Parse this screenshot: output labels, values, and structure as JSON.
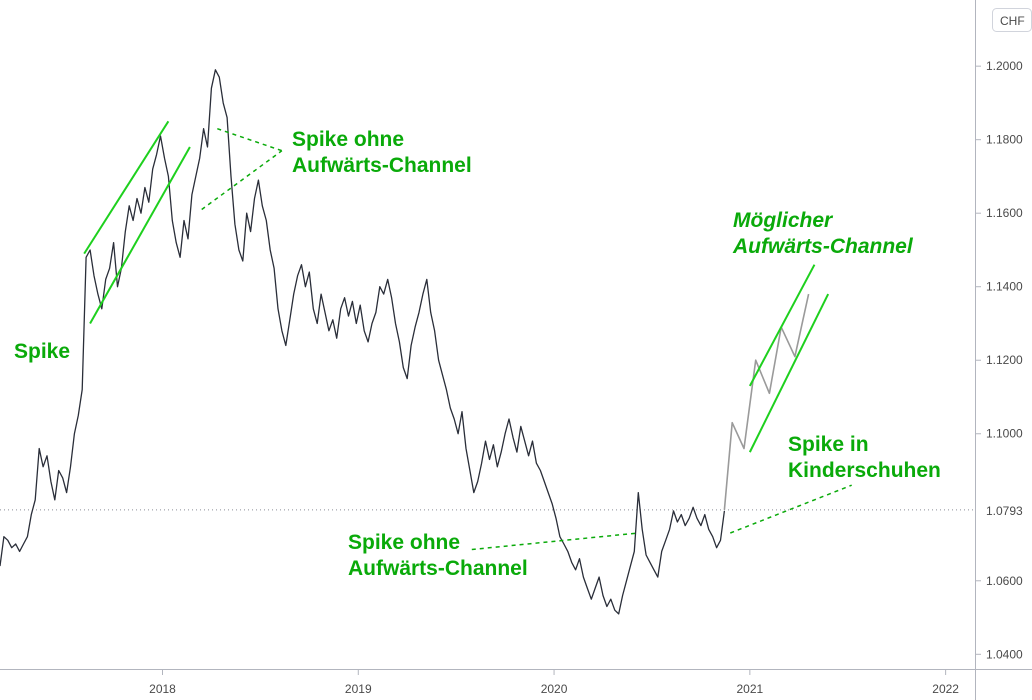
{
  "chart_data": {
    "type": "line",
    "currency_label": "CHF",
    "current_value": 1.0793,
    "current_value_label": "1.0793",
    "ylim": [
      1.036,
      1.218
    ],
    "xlim": [
      2017.17,
      2022.15
    ],
    "x_ticks": [
      {
        "value": 2018,
        "label": "2018"
      },
      {
        "value": 2019,
        "label": "2019"
      },
      {
        "value": 2020,
        "label": "2020"
      },
      {
        "value": 2021,
        "label": "2021"
      },
      {
        "value": 2022,
        "label": "2022"
      }
    ],
    "y_ticks": [
      {
        "value": 1.2,
        "label": "1.2000"
      },
      {
        "value": 1.18,
        "label": "1.1800"
      },
      {
        "value": 1.16,
        "label": "1.1600"
      },
      {
        "value": 1.14,
        "label": "1.1400"
      },
      {
        "value": 1.12,
        "label": "1.1200"
      },
      {
        "value": 1.1,
        "label": "1.1000"
      },
      {
        "value": 1.08,
        "label": "1.0800"
      },
      {
        "value": 1.06,
        "label": "1.0600"
      },
      {
        "value": 1.04,
        "label": "1.0400"
      }
    ],
    "series": [
      {
        "values": [
          [
            2017.17,
            1.064
          ],
          [
            2017.19,
            1.072
          ],
          [
            2017.21,
            1.071
          ],
          [
            2017.23,
            1.069
          ],
          [
            2017.25,
            1.07
          ],
          [
            2017.27,
            1.068
          ],
          [
            2017.29,
            1.07
          ],
          [
            2017.31,
            1.072
          ],
          [
            2017.33,
            1.078
          ],
          [
            2017.35,
            1.082
          ],
          [
            2017.37,
            1.096
          ],
          [
            2017.39,
            1.091
          ],
          [
            2017.41,
            1.094
          ],
          [
            2017.43,
            1.087
          ],
          [
            2017.45,
            1.082
          ],
          [
            2017.47,
            1.09
          ],
          [
            2017.49,
            1.088
          ],
          [
            2017.51,
            1.084
          ],
          [
            2017.53,
            1.091
          ],
          [
            2017.55,
            1.1
          ],
          [
            2017.57,
            1.105
          ],
          [
            2017.59,
            1.112
          ],
          [
            2017.61,
            1.148
          ],
          [
            2017.63,
            1.15
          ],
          [
            2017.65,
            1.143
          ],
          [
            2017.67,
            1.138
          ],
          [
            2017.69,
            1.134
          ],
          [
            2017.71,
            1.142
          ],
          [
            2017.73,
            1.145
          ],
          [
            2017.75,
            1.152
          ],
          [
            2017.77,
            1.14
          ],
          [
            2017.79,
            1.145
          ],
          [
            2017.81,
            1.155
          ],
          [
            2017.83,
            1.162
          ],
          [
            2017.85,
            1.158
          ],
          [
            2017.87,
            1.164
          ],
          [
            2017.89,
            1.16
          ],
          [
            2017.91,
            1.167
          ],
          [
            2017.93,
            1.163
          ],
          [
            2017.95,
            1.172
          ],
          [
            2017.97,
            1.176
          ],
          [
            2017.99,
            1.181
          ],
          [
            2018.01,
            1.175
          ],
          [
            2018.03,
            1.17
          ],
          [
            2018.05,
            1.158
          ],
          [
            2018.07,
            1.152
          ],
          [
            2018.09,
            1.148
          ],
          [
            2018.11,
            1.158
          ],
          [
            2018.13,
            1.153
          ],
          [
            2018.15,
            1.165
          ],
          [
            2018.17,
            1.17
          ],
          [
            2018.19,
            1.175
          ],
          [
            2018.21,
            1.183
          ],
          [
            2018.23,
            1.178
          ],
          [
            2018.25,
            1.194
          ],
          [
            2018.27,
            1.199
          ],
          [
            2018.29,
            1.197
          ],
          [
            2018.31,
            1.19
          ],
          [
            2018.33,
            1.186
          ],
          [
            2018.35,
            1.17
          ],
          [
            2018.37,
            1.157
          ],
          [
            2018.39,
            1.15
          ],
          [
            2018.41,
            1.147
          ],
          [
            2018.43,
            1.16
          ],
          [
            2018.45,
            1.155
          ],
          [
            2018.47,
            1.164
          ],
          [
            2018.49,
            1.169
          ],
          [
            2018.51,
            1.162
          ],
          [
            2018.53,
            1.158
          ],
          [
            2018.55,
            1.15
          ],
          [
            2018.57,
            1.145
          ],
          [
            2018.59,
            1.134
          ],
          [
            2018.61,
            1.128
          ],
          [
            2018.63,
            1.124
          ],
          [
            2018.65,
            1.131
          ],
          [
            2018.67,
            1.138
          ],
          [
            2018.69,
            1.143
          ],
          [
            2018.71,
            1.146
          ],
          [
            2018.73,
            1.14
          ],
          [
            2018.75,
            1.144
          ],
          [
            2018.77,
            1.134
          ],
          [
            2018.79,
            1.13
          ],
          [
            2018.81,
            1.138
          ],
          [
            2018.83,
            1.133
          ],
          [
            2018.85,
            1.128
          ],
          [
            2018.87,
            1.131
          ],
          [
            2018.89,
            1.126
          ],
          [
            2018.91,
            1.134
          ],
          [
            2018.93,
            1.137
          ],
          [
            2018.95,
            1.132
          ],
          [
            2018.97,
            1.136
          ],
          [
            2018.99,
            1.13
          ],
          [
            2019.01,
            1.135
          ],
          [
            2019.03,
            1.128
          ],
          [
            2019.05,
            1.125
          ],
          [
            2019.07,
            1.13
          ],
          [
            2019.09,
            1.133
          ],
          [
            2019.11,
            1.14
          ],
          [
            2019.13,
            1.138
          ],
          [
            2019.15,
            1.142
          ],
          [
            2019.17,
            1.137
          ],
          [
            2019.19,
            1.13
          ],
          [
            2019.21,
            1.125
          ],
          [
            2019.23,
            1.118
          ],
          [
            2019.25,
            1.115
          ],
          [
            2019.27,
            1.124
          ],
          [
            2019.29,
            1.129
          ],
          [
            2019.31,
            1.133
          ],
          [
            2019.33,
            1.138
          ],
          [
            2019.35,
            1.142
          ],
          [
            2019.37,
            1.133
          ],
          [
            2019.39,
            1.128
          ],
          [
            2019.41,
            1.12
          ],
          [
            2019.43,
            1.116
          ],
          [
            2019.45,
            1.112
          ],
          [
            2019.47,
            1.107
          ],
          [
            2019.49,
            1.104
          ],
          [
            2019.51,
            1.1
          ],
          [
            2019.53,
            1.106
          ],
          [
            2019.55,
            1.096
          ],
          [
            2019.57,
            1.09
          ],
          [
            2019.59,
            1.084
          ],
          [
            2019.61,
            1.087
          ],
          [
            2019.63,
            1.092
          ],
          [
            2019.65,
            1.098
          ],
          [
            2019.67,
            1.093
          ],
          [
            2019.69,
            1.097
          ],
          [
            2019.71,
            1.091
          ],
          [
            2019.73,
            1.095
          ],
          [
            2019.75,
            1.1
          ],
          [
            2019.77,
            1.104
          ],
          [
            2019.79,
            1.099
          ],
          [
            2019.81,
            1.095
          ],
          [
            2019.83,
            1.102
          ],
          [
            2019.85,
            1.098
          ],
          [
            2019.87,
            1.094
          ],
          [
            2019.89,
            1.098
          ],
          [
            2019.91,
            1.092
          ],
          [
            2019.93,
            1.09
          ],
          [
            2019.95,
            1.087
          ],
          [
            2019.97,
            1.084
          ],
          [
            2019.99,
            1.081
          ],
          [
            2020.01,
            1.077
          ],
          [
            2020.03,
            1.072
          ],
          [
            2020.05,
            1.07
          ],
          [
            2020.07,
            1.068
          ],
          [
            2020.09,
            1.065
          ],
          [
            2020.11,
            1.063
          ],
          [
            2020.13,
            1.066
          ],
          [
            2020.15,
            1.061
          ],
          [
            2020.17,
            1.058
          ],
          [
            2020.19,
            1.055
          ],
          [
            2020.21,
            1.058
          ],
          [
            2020.23,
            1.061
          ],
          [
            2020.25,
            1.056
          ],
          [
            2020.27,
            1.053
          ],
          [
            2020.29,
            1.055
          ],
          [
            2020.31,
            1.052
          ],
          [
            2020.33,
            1.051
          ],
          [
            2020.35,
            1.056
          ],
          [
            2020.37,
            1.06
          ],
          [
            2020.39,
            1.064
          ],
          [
            2020.41,
            1.068
          ],
          [
            2020.43,
            1.084
          ],
          [
            2020.45,
            1.074
          ],
          [
            2020.47,
            1.067
          ],
          [
            2020.49,
            1.065
          ],
          [
            2020.51,
            1.063
          ],
          [
            2020.53,
            1.061
          ],
          [
            2020.55,
            1.068
          ],
          [
            2020.57,
            1.071
          ],
          [
            2020.59,
            1.074
          ],
          [
            2020.61,
            1.079
          ],
          [
            2020.63,
            1.076
          ],
          [
            2020.65,
            1.078
          ],
          [
            2020.67,
            1.075
          ],
          [
            2020.69,
            1.077
          ],
          [
            2020.71,
            1.08
          ],
          [
            2020.73,
            1.077
          ],
          [
            2020.75,
            1.075
          ],
          [
            2020.77,
            1.078
          ],
          [
            2020.79,
            1.074
          ],
          [
            2020.81,
            1.072
          ],
          [
            2020.83,
            1.069
          ],
          [
            2020.85,
            1.071
          ],
          [
            2020.87,
            1.079
          ]
        ]
      },
      {
        "values": [
          [
            2020.87,
            1.0793
          ],
          [
            2020.91,
            1.103
          ],
          [
            2020.97,
            1.096
          ],
          [
            2021.03,
            1.12
          ],
          [
            2021.1,
            1.111
          ],
          [
            2021.16,
            1.129
          ],
          [
            2021.23,
            1.121
          ],
          [
            2021.3,
            1.138
          ]
        ]
      }
    ],
    "annotations": [
      {
        "text": [
          "Spike"
        ],
        "italic": false
      },
      {
        "text": [
          "Spike ohne",
          "Aufwärts-Channel"
        ],
        "italic": false
      },
      {
        "text": [
          "Möglicher",
          "Aufwärts-Channel"
        ],
        "italic": true
      },
      {
        "text": [
          "Spike in",
          "Kinderschuhen"
        ],
        "italic": false
      },
      {
        "text": [
          "Spike ohne",
          "Aufwärts-Channel"
        ],
        "italic": false
      }
    ],
    "channels": [
      {
        "lines": [
          [
            [
              2017.6,
              1.149
            ],
            [
              2018.03,
              1.185
            ]
          ],
          [
            [
              2017.63,
              1.13
            ],
            [
              2018.14,
              1.178
            ]
          ]
        ]
      },
      {
        "lines": [
          [
            [
              2021.0,
              1.113
            ],
            [
              2021.33,
              1.146
            ]
          ],
          [
            [
              2021.0,
              1.095
            ],
            [
              2021.4,
              1.138
            ]
          ]
        ]
      }
    ],
    "guides": [
      {
        "points": [
          [
            2018.28,
            1.183
          ],
          [
            2018.61,
            1.177
          ]
        ]
      },
      {
        "points": [
          [
            2018.2,
            1.161
          ],
          [
            2018.61,
            1.177
          ]
        ]
      },
      {
        "points": [
          [
            2019.58,
            1.0685
          ],
          [
            2020.43,
            1.073
          ]
        ]
      },
      {
        "points": [
          [
            2020.9,
            1.073
          ],
          [
            2021.52,
            1.086
          ]
        ]
      }
    ],
    "colors": {
      "price_line": "#2a2e39",
      "projection_line": "#9a9a9a",
      "annotation": "#0aaa0a",
      "channel": "#1ed01e",
      "axis": "#b2b5be",
      "current_line": "#8a8d96"
    }
  }
}
